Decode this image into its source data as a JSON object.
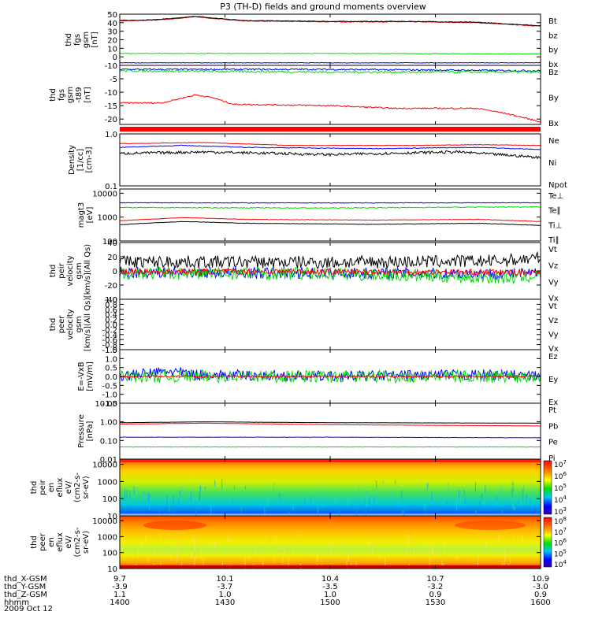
{
  "title": "P3 (TH-D) fields and ground moments overview",
  "date_label": "2009 Oct 12",
  "colors": {
    "black": "#000000",
    "red": "#ff0000",
    "green": "#00dd00",
    "blue": "#0000ff"
  },
  "chart_data": [
    {
      "id": "fgs_gsm",
      "type": "line",
      "ylabel": [
        "thd",
        "fgs",
        "gsm",
        "[nT]"
      ],
      "ylim": [
        -10,
        50
      ],
      "yticks": [
        "50",
        "40",
        "30",
        "20",
        "10",
        "0",
        "-10"
      ],
      "log": false,
      "legend": [
        {
          "label": "Bt",
          "color": "black"
        },
        {
          "label": "bz",
          "color": "red"
        },
        {
          "label": "by",
          "color": "green"
        },
        {
          "label": "bx",
          "color": "blue"
        }
      ],
      "series": [
        {
          "color": "red",
          "noise": 0.4,
          "points": [
            [
              0,
              42
            ],
            [
              0.08,
              43
            ],
            [
              0.14,
              45
            ],
            [
              0.18,
              47
            ],
            [
              0.22,
              45
            ],
            [
              0.3,
              42
            ],
            [
              0.5,
              41
            ],
            [
              0.7,
              41
            ],
            [
              0.85,
              40
            ],
            [
              1,
              36
            ]
          ]
        },
        {
          "color": "black",
          "noise": 0.4,
          "points": [
            [
              0,
              42.5
            ],
            [
              0.08,
              43.5
            ],
            [
              0.14,
              45.5
            ],
            [
              0.18,
              47.5
            ],
            [
              0.22,
              45.5
            ],
            [
              0.3,
              42.5
            ],
            [
              0.5,
              41.5
            ],
            [
              0.7,
              41.5
            ],
            [
              0.85,
              40.5
            ],
            [
              1,
              36.5
            ]
          ]
        },
        {
          "color": "green",
          "noise": 0.3,
          "points": [
            [
              0,
              4
            ],
            [
              0.5,
              4
            ],
            [
              1,
              3.5
            ]
          ]
        },
        {
          "color": "blue",
          "noise": 0.3,
          "points": [
            [
              0,
              -7
            ],
            [
              0.5,
              -7
            ],
            [
              1,
              -7
            ]
          ]
        }
      ]
    },
    {
      "id": "fgs_sm",
      "type": "line",
      "ylabel": [
        "thd",
        "fgs",
        "gsm",
        "-t89",
        "[nT]"
      ],
      "ylim": [
        -22,
        0
      ],
      "yticks": [
        "-5",
        "-10",
        "-15",
        "-20"
      ],
      "log": false,
      "legend": [
        {
          "label": "Bz",
          "color": "red"
        },
        {
          "label": "By",
          "color": "green"
        },
        {
          "label": "Bx",
          "color": "blue"
        }
      ],
      "series": [
        {
          "color": "blue",
          "noise": 0.3,
          "points": [
            [
              0,
              -1.5
            ],
            [
              0.5,
              -1.5
            ],
            [
              1,
              -2
            ]
          ]
        },
        {
          "color": "green",
          "noise": 0.4,
          "points": [
            [
              0,
              -2
            ],
            [
              0.5,
              -2.5
            ],
            [
              1,
              -2.5
            ]
          ]
        },
        {
          "color": "red",
          "noise": 0.25,
          "points": [
            [
              0,
              -14
            ],
            [
              0.1,
              -14
            ],
            [
              0.18,
              -11
            ],
            [
              0.22,
              -12
            ],
            [
              0.27,
              -14.5
            ],
            [
              0.5,
              -15
            ],
            [
              0.65,
              -16
            ],
            [
              0.85,
              -16
            ],
            [
              0.92,
              -18
            ],
            [
              1,
              -21
            ]
          ]
        }
      ]
    },
    {
      "id": "density",
      "type": "line",
      "ylabel": [
        "Density",
        "[1/cc]",
        "[cm-3]"
      ],
      "ylim": [
        0.1,
        1.0
      ],
      "yticks": [
        "1.0",
        "0.1"
      ],
      "log": true,
      "legend": [
        {
          "label": "Ne",
          "color": "red"
        },
        {
          "label": "Ni",
          "color": "black"
        },
        {
          "label": "Npot",
          "color": "blue"
        }
      ],
      "series": [
        {
          "color": "blue",
          "noise": 0.015,
          "points": [
            [
              0,
              0.55
            ],
            [
              0.15,
              0.6
            ],
            [
              0.3,
              0.55
            ],
            [
              0.6,
              0.52
            ],
            [
              0.85,
              0.55
            ],
            [
              1,
              0.5
            ]
          ]
        },
        {
          "color": "red",
          "noise": 0.01,
          "points": [
            [
              0,
              0.65
            ],
            [
              0.2,
              0.68
            ],
            [
              0.4,
              0.6
            ],
            [
              0.7,
              0.6
            ],
            [
              0.85,
              0.62
            ],
            [
              1,
              0.6
            ]
          ]
        },
        {
          "color": "black",
          "noise": 0.06,
          "points": [
            [
              0,
              0.42
            ],
            [
              0.2,
              0.45
            ],
            [
              0.5,
              0.4
            ],
            [
              0.8,
              0.45
            ],
            [
              1,
              0.35
            ]
          ]
        }
      ]
    },
    {
      "id": "temp",
      "type": "line",
      "ylabel": [
        "magt3",
        "[eV]"
      ],
      "ylim": [
        100,
        15000
      ],
      "yticks": [
        "10000",
        "1000",
        "100"
      ],
      "log": true,
      "legend": [
        {
          "label": "Te⊥",
          "color": "red"
        },
        {
          "label": "Te∥",
          "color": "black"
        },
        {
          "label": "Ti⊥",
          "color": "blue"
        },
        {
          "label": "Ti∥",
          "color": "green"
        }
      ],
      "series": [
        {
          "color": "blue",
          "noise": 0.03,
          "points": [
            [
              0,
              4000
            ],
            [
              0.5,
              3900
            ],
            [
              1,
              4000
            ]
          ]
        },
        {
          "color": "green",
          "noise": 0.04,
          "points": [
            [
              0,
              2500
            ],
            [
              0.5,
              2400
            ],
            [
              1,
              2700
            ]
          ]
        },
        {
          "color": "red",
          "noise": 0.02,
          "points": [
            [
              0,
              700
            ],
            [
              0.15,
              950
            ],
            [
              0.3,
              800
            ],
            [
              0.6,
              750
            ],
            [
              0.85,
              800
            ],
            [
              1,
              650
            ]
          ]
        },
        {
          "color": "black",
          "noise": 0.02,
          "points": [
            [
              0,
              480
            ],
            [
              0.15,
              650
            ],
            [
              0.3,
              550
            ],
            [
              0.6,
              500
            ],
            [
              0.85,
              550
            ],
            [
              1,
              450
            ]
          ]
        }
      ]
    },
    {
      "id": "peir_vel",
      "type": "line",
      "ylabel": [
        "thd",
        "peir",
        "velocity",
        "gsm",
        "[km/s](All Qs)"
      ],
      "ylim": [
        -40,
        40
      ],
      "yticks": [
        "40",
        "20",
        "0",
        "-20",
        "-40"
      ],
      "log": false,
      "legend": [
        {
          "label": "Vt",
          "color": "black"
        },
        {
          "label": "Vz",
          "color": "red"
        },
        {
          "label": "Vy",
          "color": "green"
        },
        {
          "label": "Vx",
          "color": "blue"
        }
      ],
      "series": [
        {
          "color": "black",
          "noise": 9,
          "points": [
            [
              0,
              13
            ],
            [
              0.5,
              12
            ],
            [
              0.9,
              14
            ],
            [
              1,
              18
            ]
          ]
        },
        {
          "color": "blue",
          "noise": 8,
          "points": [
            [
              0,
              -2
            ],
            [
              0.5,
              -3
            ],
            [
              1,
              -4
            ]
          ]
        },
        {
          "color": "green",
          "noise": 9,
          "points": [
            [
              0,
              -3
            ],
            [
              0.5,
              -4
            ],
            [
              0.93,
              -10
            ],
            [
              1,
              -6
            ]
          ]
        },
        {
          "color": "red",
          "noise": 4,
          "points": [
            [
              0,
              -1
            ],
            [
              0.5,
              -1
            ],
            [
              1,
              -2
            ]
          ]
        }
      ]
    },
    {
      "id": "peer_vel",
      "type": "line",
      "ylabel": [
        "thd",
        "peer",
        "velocity",
        "gsm",
        "[km/s](All Qs)"
      ],
      "ylim": [
        -1,
        1
      ],
      "yticks": [
        "1.0",
        "0.8",
        "0.6",
        "0.4",
        "0.2",
        "0.0",
        "-0.2",
        "-0.4",
        "-0.6",
        "-0.8",
        "-1.0"
      ],
      "log": false,
      "legend": [
        {
          "label": "Vt",
          "color": "black"
        },
        {
          "label": "Vz",
          "color": "red"
        },
        {
          "label": "Vy",
          "color": "green"
        },
        {
          "label": "Vx",
          "color": "blue"
        }
      ],
      "series": []
    },
    {
      "id": "efield",
      "type": "line",
      "ylabel": [
        "E=-VxB",
        "[mV/m]"
      ],
      "ylim": [
        -1.5,
        1.5
      ],
      "yticks": [
        "1.5",
        "1.0",
        "0.5",
        "0.0",
        "-0.5",
        "-1.0",
        "-1.5"
      ],
      "log": false,
      "legend": [
        {
          "label": "Ez",
          "color": "red"
        },
        {
          "label": "Ey",
          "color": "green"
        },
        {
          "label": "Ex",
          "color": "blue"
        }
      ],
      "series": [
        {
          "color": "blue",
          "noise": 0.3,
          "points": [
            [
              0,
              0
            ],
            [
              0.12,
              0.3
            ],
            [
              0.18,
              0.1
            ],
            [
              0.5,
              0
            ],
            [
              0.9,
              0.1
            ],
            [
              1,
              0
            ]
          ]
        },
        {
          "color": "green",
          "noise": 0.35,
          "points": [
            [
              0,
              0
            ],
            [
              0.5,
              0
            ],
            [
              1,
              0
            ]
          ]
        },
        {
          "color": "red",
          "noise": 0.05,
          "points": [
            [
              0,
              0
            ],
            [
              0.5,
              0
            ],
            [
              1,
              0
            ]
          ]
        }
      ]
    },
    {
      "id": "pressure",
      "type": "line",
      "ylabel": [
        "Pressure",
        "[nPa]"
      ],
      "ylim": [
        0.01,
        10
      ],
      "yticks": [
        "10.00",
        "1.00",
        "0.10",
        "0.01"
      ],
      "log": true,
      "legend": [
        {
          "label": "Pt",
          "color": "black"
        },
        {
          "label": "Pb",
          "color": "red"
        },
        {
          "label": "Pe",
          "color": "green"
        },
        {
          "label": "Pi",
          "color": "blue"
        }
      ],
      "series": [
        {
          "color": "black",
          "noise": 0.01,
          "points": [
            [
              0,
              0.9
            ],
            [
              0.2,
              1.0
            ],
            [
              0.5,
              0.9
            ],
            [
              1,
              0.85
            ]
          ]
        },
        {
          "color": "red",
          "noise": 0.01,
          "points": [
            [
              0,
              0.75
            ],
            [
              0.2,
              0.85
            ],
            [
              0.5,
              0.7
            ],
            [
              1,
              0.6
            ]
          ]
        },
        {
          "color": "blue",
          "noise": 0.02,
          "points": [
            [
              0,
              0.15
            ],
            [
              0.5,
              0.15
            ],
            [
              1,
              0.14
            ]
          ]
        },
        {
          "color": "green",
          "noise": 0.02,
          "points": [
            [
              0,
              0.045
            ],
            [
              0.5,
              0.045
            ],
            [
              1,
              0.045
            ]
          ]
        }
      ]
    },
    {
      "id": "peir_spec",
      "type": "heatmap",
      "ylabel": [
        "thd",
        "peir",
        "en",
        "eflux",
        "eV/",
        "(cm2-s-",
        "sr-eV)"
      ],
      "ylim": [
        10,
        20000
      ],
      "yticks": [
        "10000",
        "1000",
        "100",
        "10"
      ],
      "log": true,
      "colorbar": [
        "10^7",
        "10^6",
        "10^5",
        "10^4",
        "10^3"
      ]
    },
    {
      "id": "peer_spec",
      "type": "heatmap",
      "ylabel": [
        "thd",
        "peer",
        "en",
        "eflux",
        "eV/",
        "(cm2-s-",
        "sr-eV)"
      ],
      "ylim": [
        10,
        20000
      ],
      "yticks": [
        "10000",
        "1000",
        "100",
        "10"
      ],
      "log": true,
      "colorbar": [
        "10^8",
        "10^7",
        "10^6",
        "10^5",
        "10^4"
      ]
    }
  ],
  "x_axis": {
    "row_labels": [
      "thd_X-GSM",
      "thd_Y-GSM",
      "thd_Z-GSM",
      "hhmm"
    ],
    "ticks": [
      {
        "x": "9.7",
        "y": "-3.9",
        "z": "1.1",
        "hhmm": "1400"
      },
      {
        "x": "10.1",
        "y": "-3.7",
        "z": "1.0",
        "hhmm": "1430"
      },
      {
        "x": "10.4",
        "y": "-3.5",
        "z": "1.0",
        "hhmm": "1500"
      },
      {
        "x": "10.7",
        "y": "-3.2",
        "z": "0.9",
        "hhmm": "1530"
      },
      {
        "x": "10.9",
        "y": "-3.0",
        "z": "0.9",
        "hhmm": "1600"
      }
    ]
  }
}
